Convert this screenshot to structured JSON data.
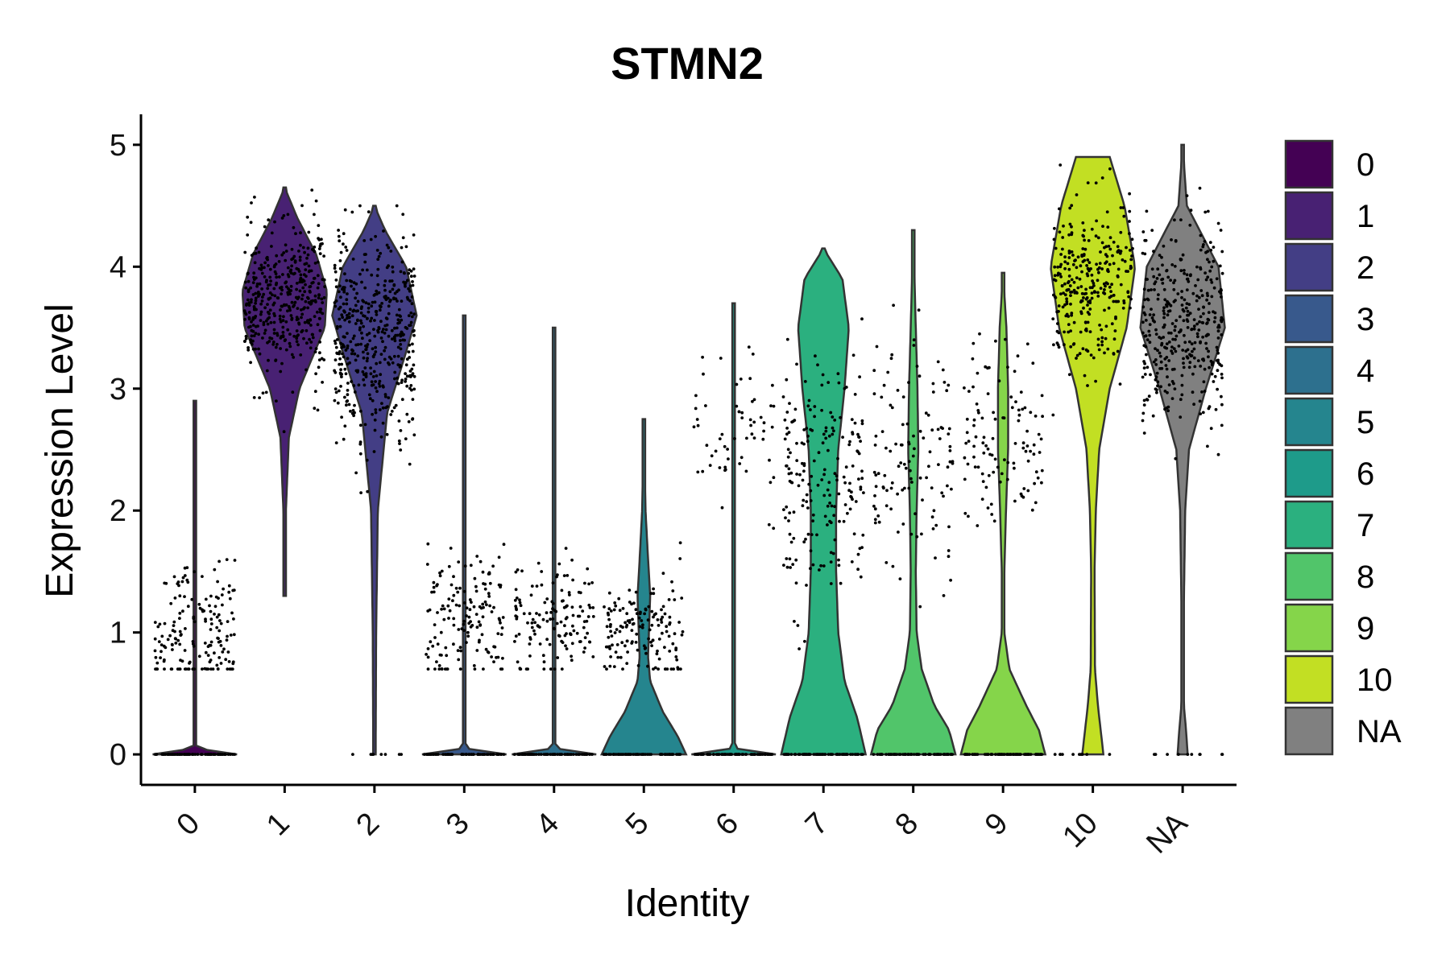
{
  "chart_data": {
    "type": "violin",
    "title": "STMN2",
    "xlabel": "Identity",
    "ylabel": "Expression Level",
    "ylim": [
      -0.25,
      5.25
    ],
    "yticks": [
      "0",
      "1",
      "2",
      "3",
      "4",
      "5"
    ],
    "legend_position": "right",
    "grid": false,
    "categories": [
      {
        "label": "0",
        "color": "#440154",
        "max": 2.9,
        "shape": [
          [
            0,
            1.0
          ],
          [
            0.05,
            0.02
          ],
          [
            0.2,
            0.02
          ],
          [
            2.9,
            0.0
          ]
        ],
        "zeros": 70,
        "points": 170,
        "center": 1.0,
        "spread": 0.5
      },
      {
        "label": "1",
        "color": "#482173",
        "max": 4.65,
        "shape": [
          [
            1.3,
            0.0
          ],
          [
            2.0,
            0.03
          ],
          [
            2.6,
            0.1
          ],
          [
            3.0,
            0.35
          ],
          [
            3.5,
            0.95
          ],
          [
            3.8,
            1.0
          ],
          [
            4.1,
            0.75
          ],
          [
            4.4,
            0.3
          ],
          [
            4.65,
            0.0
          ]
        ],
        "zeros": 0,
        "points": 420,
        "center": 3.7,
        "spread": 0.55
      },
      {
        "label": "2",
        "color": "#433E85",
        "max": 4.5,
        "shape": [
          [
            0,
            0.03
          ],
          [
            0.1,
            0.03
          ],
          [
            1.0,
            0.04
          ],
          [
            2.0,
            0.08
          ],
          [
            2.8,
            0.3
          ],
          [
            3.3,
            0.75
          ],
          [
            3.6,
            1.0
          ],
          [
            4.0,
            0.75
          ],
          [
            4.3,
            0.25
          ],
          [
            4.5,
            0.0
          ]
        ],
        "zeros": 8,
        "points": 480,
        "center": 3.4,
        "spread": 0.8
      },
      {
        "label": "3",
        "color": "#38598C",
        "max": 3.6,
        "shape": [
          [
            0,
            1.0
          ],
          [
            0.05,
            0.02
          ],
          [
            0.2,
            0.02
          ],
          [
            3.6,
            0.0
          ]
        ],
        "zeros": 70,
        "points": 150,
        "center": 1.1,
        "spread": 0.5
      },
      {
        "label": "4",
        "color": "#2D708E",
        "max": 3.5,
        "shape": [
          [
            0,
            1.0
          ],
          [
            0.05,
            0.02
          ],
          [
            0.2,
            0.02
          ],
          [
            3.5,
            0.0
          ]
        ],
        "zeros": 70,
        "points": 140,
        "center": 1.1,
        "spread": 0.45
      },
      {
        "label": "5",
        "color": "#25858E",
        "max": 2.75,
        "shape": [
          [
            0,
            1.0
          ],
          [
            0.15,
            0.8
          ],
          [
            0.35,
            0.45
          ],
          [
            0.6,
            0.15
          ],
          [
            0.8,
            0.1
          ],
          [
            1.0,
            0.12
          ],
          [
            1.3,
            0.15
          ],
          [
            1.6,
            0.1
          ],
          [
            2.0,
            0.04
          ],
          [
            2.75,
            0.0
          ]
        ],
        "zeros": 60,
        "points": 150,
        "center": 1.0,
        "spread": 0.4
      },
      {
        "label": "6",
        "color": "#1E9B8A",
        "max": 3.7,
        "shape": [
          [
            0,
            1.0
          ],
          [
            0.05,
            0.02
          ],
          [
            0.2,
            0.02
          ],
          [
            3.7,
            0.0
          ]
        ],
        "zeros": 70,
        "points": 60,
        "center": 2.7,
        "spread": 0.6
      },
      {
        "label": "7",
        "color": "#2BB07F",
        "max": 4.15,
        "shape": [
          [
            0,
            1.0
          ],
          [
            0.3,
            0.8
          ],
          [
            0.6,
            0.5
          ],
          [
            1.0,
            0.35
          ],
          [
            1.5,
            0.3
          ],
          [
            2.0,
            0.3
          ],
          [
            2.5,
            0.35
          ],
          [
            3.0,
            0.5
          ],
          [
            3.5,
            0.6
          ],
          [
            3.9,
            0.45
          ],
          [
            4.15,
            0.0
          ]
        ],
        "zeros": 70,
        "points": 200,
        "center": 2.2,
        "spread": 1.0
      },
      {
        "label": "8",
        "color": "#51C56A",
        "max": 4.3,
        "shape": [
          [
            0,
            1.0
          ],
          [
            0.2,
            0.85
          ],
          [
            0.4,
            0.5
          ],
          [
            0.7,
            0.2
          ],
          [
            1.0,
            0.08
          ],
          [
            1.5,
            0.06
          ],
          [
            2.0,
            0.08
          ],
          [
            2.5,
            0.12
          ],
          [
            3.0,
            0.1
          ],
          [
            3.5,
            0.06
          ],
          [
            4.3,
            0.0
          ]
        ],
        "zeros": 70,
        "points": 120,
        "center": 2.3,
        "spread": 0.9
      },
      {
        "label": "9",
        "color": "#85D54A",
        "max": 3.95,
        "shape": [
          [
            0,
            1.0
          ],
          [
            0.2,
            0.85
          ],
          [
            0.4,
            0.55
          ],
          [
            0.7,
            0.15
          ],
          [
            1.0,
            0.03
          ],
          [
            1.5,
            0.03
          ],
          [
            2.0,
            0.07
          ],
          [
            2.5,
            0.12
          ],
          [
            3.0,
            0.12
          ],
          [
            3.5,
            0.08
          ],
          [
            3.95,
            0.0
          ]
        ],
        "zeros": 70,
        "points": 110,
        "center": 2.6,
        "spread": 0.7
      },
      {
        "label": "10",
        "color": "#C2DF23",
        "max": 4.9,
        "shape": [
          [
            0,
            0.25
          ],
          [
            0.4,
            0.12
          ],
          [
            0.7,
            0.05
          ],
          [
            1.5,
            0.04
          ],
          [
            2.0,
            0.07
          ],
          [
            2.5,
            0.15
          ],
          [
            3.0,
            0.4
          ],
          [
            3.5,
            0.8
          ],
          [
            4.0,
            1.0
          ],
          [
            4.5,
            0.75
          ],
          [
            4.9,
            0.4
          ]
        ],
        "zeros": 10,
        "points": 300,
        "center": 3.9,
        "spread": 0.6
      },
      {
        "label": "NA",
        "color": "#808080",
        "max": 5.0,
        "shape": [
          [
            0,
            0.12
          ],
          [
            0.2,
            0.08
          ],
          [
            0.4,
            0.03
          ],
          [
            1.0,
            0.02
          ],
          [
            2.0,
            0.06
          ],
          [
            2.5,
            0.15
          ],
          [
            3.0,
            0.55
          ],
          [
            3.5,
            1.0
          ],
          [
            4.0,
            0.85
          ],
          [
            4.3,
            0.4
          ],
          [
            4.5,
            0.1
          ],
          [
            5.0,
            0.0
          ]
        ],
        "zeros": 10,
        "points": 380,
        "center": 3.5,
        "spread": 0.7
      }
    ]
  }
}
